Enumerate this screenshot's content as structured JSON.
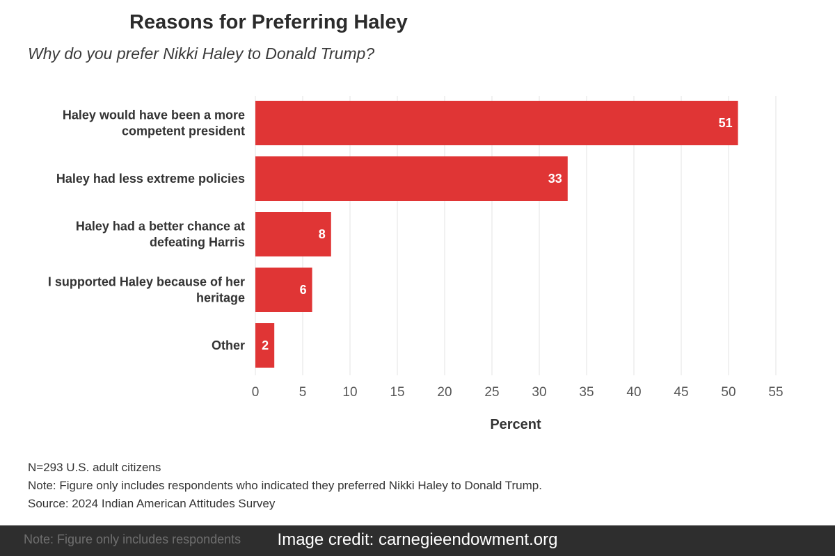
{
  "chart_data": {
    "type": "bar",
    "orientation": "horizontal",
    "title": "Reasons for Preferring Haley",
    "subtitle": "Why do you prefer Nikki Haley to Donald Trump?",
    "categories": [
      [
        "Haley would have been a more",
        "competent president"
      ],
      [
        "Haley had less extreme policies"
      ],
      [
        "Haley had a better chance at",
        "defeating Harris"
      ],
      [
        "I supported Haley because of her",
        "heritage"
      ],
      [
        "Other"
      ]
    ],
    "values": [
      51,
      33,
      8,
      6,
      2
    ],
    "xlabel": "Percent",
    "ylabel": "",
    "xlim": [
      0,
      55
    ],
    "xticks": [
      0,
      5,
      10,
      15,
      20,
      25,
      30,
      35,
      40,
      45,
      50,
      55
    ],
    "grid": true,
    "bar_color": "#e03535"
  },
  "footnotes": {
    "sample": "N=293 U.S. adult citizens",
    "note": "Note: Figure only includes respondents who indicated they preferred Nikki Haley to Donald Trump.",
    "source": "Source: 2024 Indian American Attitudes Survey"
  },
  "credit": {
    "text": "Image credit: carnegieendowment.org",
    "ghost_text": "Note: Figure only includes respondents"
  }
}
